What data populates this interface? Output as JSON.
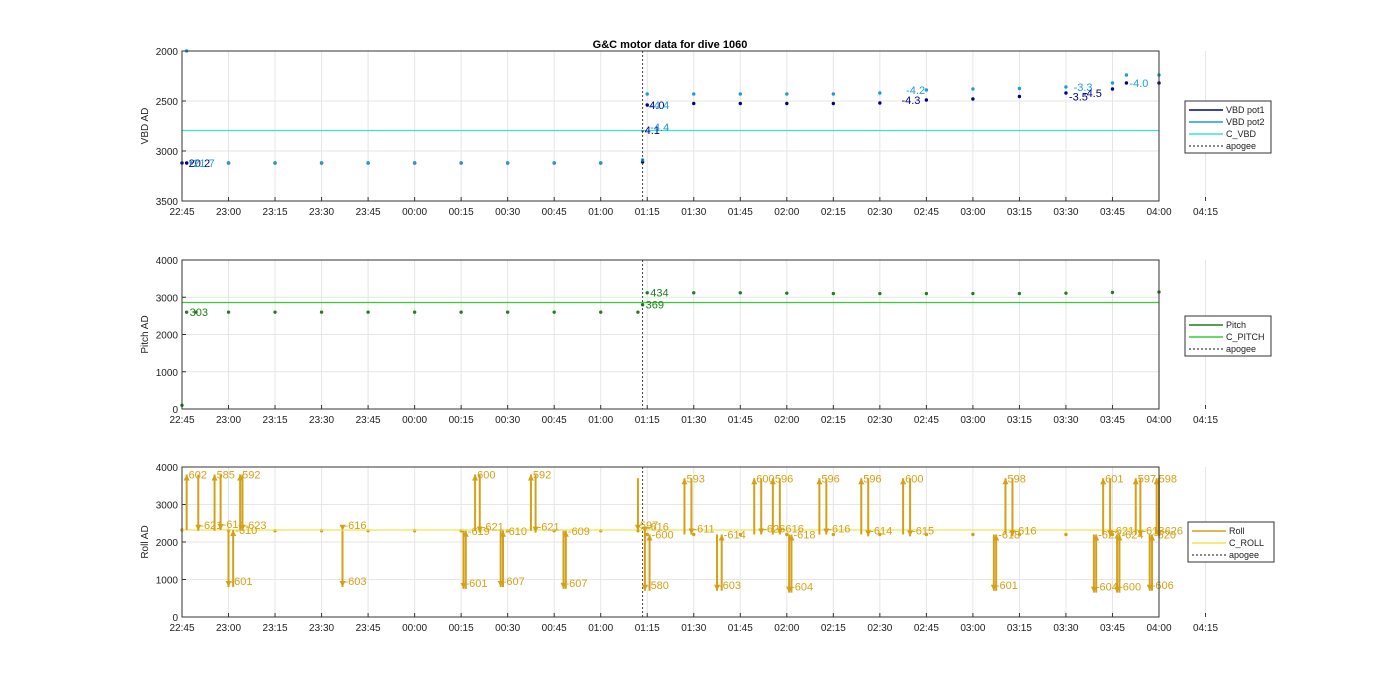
{
  "figure": {
    "title": "G&C motor data for dive 1060"
  },
  "time_ticks": [
    "22:45",
    "23:00",
    "23:15",
    "23:30",
    "23:45",
    "00:00",
    "00:15",
    "00:30",
    "00:45",
    "01:00",
    "01:15",
    "01:30",
    "01:45",
    "02:00",
    "02:15",
    "02:30",
    "02:45",
    "03:00",
    "03:15",
    "03:30",
    "03:45",
    "04:00",
    "04:15"
  ],
  "chart_data": [
    {
      "type": "scatter",
      "title": "G&C motor data for dive 1060",
      "xlabel": "",
      "ylabel": "VBD AD",
      "x_units": "minutes after 22:45",
      "xlim": [
        0,
        210
      ],
      "ylim": [
        2000,
        3500
      ],
      "y_reversed": true,
      "yticks": [
        2000,
        2500,
        3000,
        3500
      ],
      "grid": true,
      "legend_position": "outside-right",
      "apogee": 99,
      "series": [
        {
          "name": "VBD pot1",
          "color": "#00008b",
          "x": [
            0,
            1,
            10,
            20,
            30,
            40,
            50,
            60,
            70,
            80,
            90,
            99,
            100,
            110,
            120,
            130,
            140,
            150,
            160,
            170,
            180,
            190,
            200,
            203,
            210
          ],
          "y": [
            3120,
            3120,
            3120,
            3120,
            3120,
            3120,
            3120,
            3120,
            3120,
            3120,
            3120,
            3110,
            2540,
            2525,
            2525,
            2525,
            2525,
            2520,
            2490,
            2480,
            2455,
            2420,
            2380,
            2320,
            2320
          ]
        },
        {
          "name": "VBD pot2",
          "color": "#1e9bdc",
          "x": [
            1,
            2,
            10,
            20,
            30,
            40,
            50,
            60,
            70,
            80,
            90,
            99,
            100,
            110,
            120,
            130,
            140,
            150,
            160,
            170,
            180,
            190,
            200,
            203,
            210
          ],
          "y": [
            2000,
            3120,
            3120,
            3120,
            3120,
            3120,
            3120,
            3120,
            3120,
            3120,
            3120,
            3090,
            2430,
            2430,
            2430,
            2430,
            2430,
            2420,
            2390,
            2380,
            2375,
            2360,
            2320,
            2240,
            2240
          ]
        },
        {
          "name": "C_VBD",
          "color": "#40e0d0",
          "x": [
            0,
            210
          ],
          "y": [
            2795,
            2795
          ]
        },
        {
          "name": "apogee",
          "color": "#404040",
          "x": [
            99,
            99
          ],
          "y": [
            2000,
            3500
          ]
        }
      ],
      "annotations": [
        {
          "text": "-20.2",
          "x": 0,
          "y": 3120,
          "color": "#00008b"
        },
        {
          "text": "-21.7",
          "x": 1,
          "y": 3120,
          "color": "#1e9bdc"
        },
        {
          "text": "-4.1",
          "x": 98,
          "y": 2790,
          "color": "#00008b"
        },
        {
          "text": "-4.0",
          "x": 99,
          "y": 2540,
          "color": "#00008b"
        },
        {
          "text": "-4.4",
          "x": 100,
          "y": 2540,
          "color": "#1e9bdc"
        },
        {
          "text": "-4.4",
          "x": 100,
          "y": 2760,
          "color": "#1e9bdc"
        },
        {
          "text": "-4.3",
          "x": 154,
          "y": 2490,
          "color": "#00008b"
        },
        {
          "text": "-4.2",
          "x": 155,
          "y": 2390,
          "color": "#1e9bdc"
        },
        {
          "text": "-3.5",
          "x": 190,
          "y": 2455,
          "color": "#00008b"
        },
        {
          "text": "-3.3",
          "x": 191,
          "y": 2360,
          "color": "#1e9bdc"
        },
        {
          "text": "-4.5",
          "x": 193,
          "y": 2420,
          "color": "#00008b"
        },
        {
          "text": "-4.0",
          "x": 203,
          "y": 2320,
          "color": "#1e9bdc"
        }
      ]
    },
    {
      "type": "scatter",
      "title": "",
      "xlabel": "",
      "ylabel": "Pitch AD",
      "x_units": "minutes after 22:45",
      "xlim": [
        0,
        210
      ],
      "ylim": [
        0,
        4000
      ],
      "yticks": [
        0,
        1000,
        2000,
        3000,
        4000
      ],
      "grid": true,
      "legend_position": "outside-right",
      "apogee": 99,
      "series": [
        {
          "name": "Pitch",
          "color": "#1f7f1f",
          "x": [
            0,
            1,
            3,
            10,
            20,
            30,
            40,
            50,
            60,
            70,
            80,
            90,
            98,
            99,
            100,
            110,
            120,
            130,
            140,
            150,
            160,
            170,
            180,
            190,
            200,
            210
          ],
          "y": [
            100,
            2600,
            2600,
            2600,
            2600,
            2600,
            2600,
            2600,
            2600,
            2600,
            2600,
            2600,
            2600,
            2800,
            3120,
            3120,
            3120,
            3110,
            3100,
            3100,
            3100,
            3100,
            3100,
            3110,
            3130,
            3140
          ]
        },
        {
          "name": "C_PITCH",
          "color": "#32cd32",
          "x": [
            0,
            210
          ],
          "y": [
            2860,
            2860
          ]
        },
        {
          "name": "apogee",
          "color": "#404040",
          "x": [
            99,
            99
          ],
          "y": [
            0,
            4000
          ]
        }
      ],
      "annotations": [
        {
          "text": "303",
          "x": 1,
          "y": 2600,
          "color": "#1f7f1f"
        },
        {
          "text": "434",
          "x": 100,
          "y": 3130,
          "color": "#1f7f1f"
        },
        {
          "text": "369",
          "x": 99,
          "y": 2800,
          "color": "#1f7f1f"
        }
      ]
    },
    {
      "type": "scatter",
      "title": "",
      "xlabel": "",
      "ylabel": "Roll AD",
      "x_units": "minutes after 22:45",
      "xlim": [
        0,
        210
      ],
      "ylim": [
        0,
        4000
      ],
      "yticks": [
        0,
        1000,
        2000,
        3000,
        4000
      ],
      "grid": true,
      "legend_position": "outside-right",
      "apogee": 99,
      "series": [
        {
          "name": "Roll",
          "color": "#d4a017",
          "x": [
            0,
            10,
            20,
            30,
            40,
            50,
            60,
            70,
            80,
            90,
            98,
            100,
            110,
            120,
            130,
            140,
            150,
            160,
            170,
            180,
            190,
            200,
            210
          ],
          "y": [
            2320,
            2310,
            2300,
            2300,
            2300,
            2300,
            2300,
            2300,
            2300,
            2300,
            2300,
            2200,
            2200,
            2200,
            2200,
            2200,
            2200,
            2200,
            2200,
            2200,
            2200,
            2200,
            2200
          ]
        },
        {
          "name": "C_ROLL",
          "color": "#f2e34c",
          "x": [
            0,
            210
          ],
          "y": [
            2320,
            2320
          ]
        },
        {
          "name": "apogee",
          "color": "#404040",
          "x": [
            99,
            99
          ],
          "y": [
            0,
            4000
          ]
        }
      ],
      "roll_moves": [
        {
          "x": 1,
          "from": 2320,
          "to": 3800,
          "label": "602"
        },
        {
          "x": 3.5,
          "from": 3800,
          "to": 2300,
          "label": "-621"
        },
        {
          "x": 7,
          "from": 2300,
          "to": 3800,
          "label": "585"
        },
        {
          "x": 8.3,
          "from": 3800,
          "to": 2320,
          "label": "-614"
        },
        {
          "x": 10,
          "from": 2320,
          "to": 800,
          "label": "-601"
        },
        {
          "x": 11,
          "from": 800,
          "to": 2320,
          "label": "-610"
        },
        {
          "x": 12.5,
          "from": 2320,
          "to": 3800,
          "label": "592"
        },
        {
          "x": 13,
          "from": 3800,
          "to": 2300,
          "label": "-623"
        },
        {
          "x": 34.5,
          "from": 2300,
          "to": 2300,
          "label": "-616"
        },
        {
          "x": 34.5,
          "from": 2300,
          "to": 800,
          "label": "-603"
        },
        {
          "x": 60.5,
          "from": 2300,
          "to": 750,
          "label": "-601"
        },
        {
          "x": 61,
          "from": 750,
          "to": 2300,
          "label": "-619"
        },
        {
          "x": 63,
          "from": 2300,
          "to": 3800,
          "label": "600"
        },
        {
          "x": 64,
          "from": 3800,
          "to": 2250,
          "label": "-621"
        },
        {
          "x": 68.5,
          "from": 2300,
          "to": 800,
          "label": "-607"
        },
        {
          "x": 69,
          "from": 800,
          "to": 2300,
          "label": "-610"
        },
        {
          "x": 75,
          "from": 2300,
          "to": 3800,
          "label": "592"
        },
        {
          "x": 76,
          "from": 3800,
          "to": 2250,
          "label": "-621"
        },
        {
          "x": 82,
          "from": 2300,
          "to": 750,
          "label": "-607"
        },
        {
          "x": 82.5,
          "from": 750,
          "to": 2300,
          "label": "-609"
        },
        {
          "x": 98,
          "from": 3700,
          "to": 2300,
          "label": "597"
        },
        {
          "x": 99.5,
          "from": 2300,
          "to": 2250,
          "label": "-616"
        },
        {
          "x": 99.5,
          "from": 2250,
          "to": 700,
          "label": "-580"
        },
        {
          "x": 100.5,
          "from": 700,
          "to": 2200,
          "label": "-600"
        },
        {
          "x": 108,
          "from": 2200,
          "to": 3700,
          "label": "593"
        },
        {
          "x": 109.5,
          "from": 3700,
          "to": 2200,
          "label": "-611"
        },
        {
          "x": 115,
          "from": 2200,
          "to": 700,
          "label": "-603"
        },
        {
          "x": 116,
          "from": 700,
          "to": 2200,
          "label": "-614"
        },
        {
          "x": 123,
          "from": 2200,
          "to": 3700,
          "label": "600"
        },
        {
          "x": 124.5,
          "from": 3700,
          "to": 2200,
          "label": "-626"
        },
        {
          "x": 127,
          "from": 2200,
          "to": 3700,
          "label": "596"
        },
        {
          "x": 128.5,
          "from": 3700,
          "to": 2200,
          "label": "-616"
        },
        {
          "x": 130.5,
          "from": 2200,
          "to": 650,
          "label": "-604"
        },
        {
          "x": 131,
          "from": 650,
          "to": 2200,
          "label": "-618"
        },
        {
          "x": 137,
          "from": 2200,
          "to": 3700,
          "label": "596"
        },
        {
          "x": 138.5,
          "from": 3700,
          "to": 2200,
          "label": "-616"
        },
        {
          "x": 146,
          "from": 2200,
          "to": 3700,
          "label": "596"
        },
        {
          "x": 147.5,
          "from": 3700,
          "to": 2150,
          "label": "-614"
        },
        {
          "x": 155,
          "from": 2200,
          "to": 3700,
          "label": "600"
        },
        {
          "x": 156.5,
          "from": 3700,
          "to": 2150,
          "label": "-615"
        },
        {
          "x": 174.5,
          "from": 2200,
          "to": 700,
          "label": "-601"
        },
        {
          "x": 175,
          "from": 700,
          "to": 2200,
          "label": "-618"
        },
        {
          "x": 177,
          "from": 2200,
          "to": 3700,
          "label": "598"
        },
        {
          "x": 178.5,
          "from": 3700,
          "to": 2150,
          "label": "-616"
        },
        {
          "x": 196,
          "from": 2200,
          "to": 650,
          "label": "-604"
        },
        {
          "x": 196.5,
          "from": 650,
          "to": 2200,
          "label": "-622"
        },
        {
          "x": 198,
          "from": 2200,
          "to": 3700,
          "label": "601"
        },
        {
          "x": 199.5,
          "from": 3700,
          "to": 2150,
          "label": "-621"
        },
        {
          "x": 201,
          "from": 2200,
          "to": 650,
          "label": "-600"
        },
        {
          "x": 201.5,
          "from": 650,
          "to": 2200,
          "label": "-624"
        },
        {
          "x": 205,
          "from": 2200,
          "to": 3700,
          "label": "597"
        },
        {
          "x": 206,
          "from": 3700,
          "to": 2150,
          "label": "-618"
        },
        {
          "x": 208,
          "from": 2200,
          "to": 700,
          "label": "-606"
        },
        {
          "x": 208.5,
          "from": 700,
          "to": 2200,
          "label": "-620"
        },
        {
          "x": 209.5,
          "from": 2200,
          "to": 3700,
          "label": "598"
        },
        {
          "x": 210,
          "from": 3700,
          "to": 2150,
          "label": "-626"
        }
      ]
    }
  ]
}
